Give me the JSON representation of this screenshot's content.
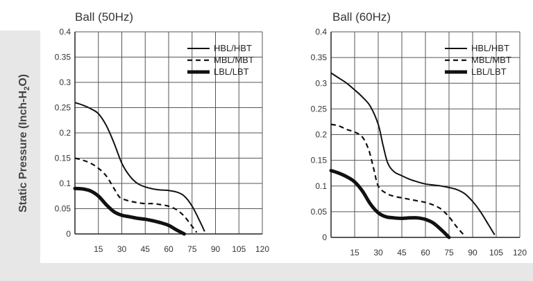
{
  "ylabel": {
    "prefix": "Static Pressure (Inch-H",
    "subscript": "2",
    "suffix": "O)"
  },
  "chart_data": [
    {
      "type": "line",
      "title": "Ball (50Hz)",
      "xlabel": "",
      "ylabel": "Static Pressure (Inch-H2O)",
      "xlim": [
        0,
        120
      ],
      "ylim": [
        0,
        0.4
      ],
      "xticks": [
        "15",
        "30",
        "45",
        "60",
        "75",
        "90",
        "105",
        "120"
      ],
      "yticks": [
        "0",
        "0.05",
        "0.1",
        "0.15",
        "0.2",
        "0.25",
        "0.3",
        "0.35",
        "0.4"
      ],
      "grid": true,
      "legend": "top-right",
      "series": [
        {
          "name": "HBL/HBT",
          "style": "solid",
          "x": [
            0,
            5,
            10,
            15,
            20,
            25,
            30,
            35,
            40,
            45,
            50,
            55,
            60,
            65,
            70,
            75,
            80,
            83
          ],
          "y": [
            0.26,
            0.255,
            0.248,
            0.238,
            0.215,
            0.18,
            0.14,
            0.115,
            0.1,
            0.093,
            0.089,
            0.087,
            0.086,
            0.083,
            0.075,
            0.055,
            0.025,
            0.005
          ]
        },
        {
          "name": "MBL/MBT",
          "style": "dashed",
          "x": [
            0,
            5,
            10,
            15,
            20,
            25,
            28,
            30,
            35,
            40,
            45,
            50,
            55,
            60,
            65,
            70,
            75,
            78
          ],
          "y": [
            0.15,
            0.146,
            0.14,
            0.13,
            0.115,
            0.09,
            0.075,
            0.07,
            0.065,
            0.062,
            0.06,
            0.06,
            0.058,
            0.055,
            0.048,
            0.035,
            0.015,
            0.003
          ]
        },
        {
          "name": "LBL/LBT",
          "style": "thick",
          "x": [
            0,
            5,
            10,
            15,
            20,
            25,
            30,
            35,
            40,
            45,
            50,
            55,
            60,
            65,
            70
          ],
          "y": [
            0.09,
            0.089,
            0.085,
            0.075,
            0.058,
            0.044,
            0.037,
            0.034,
            0.031,
            0.029,
            0.026,
            0.022,
            0.017,
            0.008,
            0.0
          ]
        }
      ]
    },
    {
      "type": "line",
      "title": "Ball (60Hz)",
      "xlabel": "",
      "ylabel": "",
      "xlim": [
        0,
        120
      ],
      "ylim": [
        0,
        0.4
      ],
      "xticks": [
        "15",
        "30",
        "45",
        "60",
        "75",
        "90",
        "105",
        "120"
      ],
      "yticks": [
        "0",
        "0.05",
        "0.1",
        "0.15",
        "0.2",
        "0.25",
        "0.3",
        "0.35",
        "0.4"
      ],
      "grid": true,
      "legend": "top-right",
      "series": [
        {
          "name": "HBL/HBT",
          "style": "solid",
          "x": [
            0,
            5,
            10,
            15,
            20,
            25,
            30,
            33,
            36,
            40,
            45,
            50,
            55,
            60,
            65,
            70,
            75,
            80,
            85,
            90,
            95,
            100,
            104
          ],
          "y": [
            0.32,
            0.31,
            0.3,
            0.287,
            0.273,
            0.255,
            0.22,
            0.18,
            0.145,
            0.128,
            0.12,
            0.113,
            0.108,
            0.104,
            0.102,
            0.1,
            0.097,
            0.093,
            0.085,
            0.07,
            0.05,
            0.025,
            0.005
          ]
        },
        {
          "name": "MBL/MBT",
          "style": "dashed",
          "x": [
            0,
            5,
            10,
            15,
            20,
            24,
            27,
            30,
            35,
            40,
            45,
            50,
            55,
            60,
            65,
            70,
            75,
            80,
            85
          ],
          "y": [
            0.22,
            0.217,
            0.21,
            0.205,
            0.195,
            0.17,
            0.135,
            0.1,
            0.086,
            0.08,
            0.077,
            0.074,
            0.071,
            0.068,
            0.063,
            0.055,
            0.04,
            0.02,
            0.003
          ]
        },
        {
          "name": "LBL/LBT",
          "style": "thick",
          "x": [
            0,
            5,
            10,
            15,
            20,
            25,
            30,
            35,
            40,
            45,
            50,
            55,
            60,
            65,
            70,
            75
          ],
          "y": [
            0.13,
            0.125,
            0.118,
            0.108,
            0.09,
            0.065,
            0.048,
            0.04,
            0.038,
            0.037,
            0.038,
            0.038,
            0.035,
            0.028,
            0.015,
            0.0
          ]
        }
      ]
    }
  ]
}
